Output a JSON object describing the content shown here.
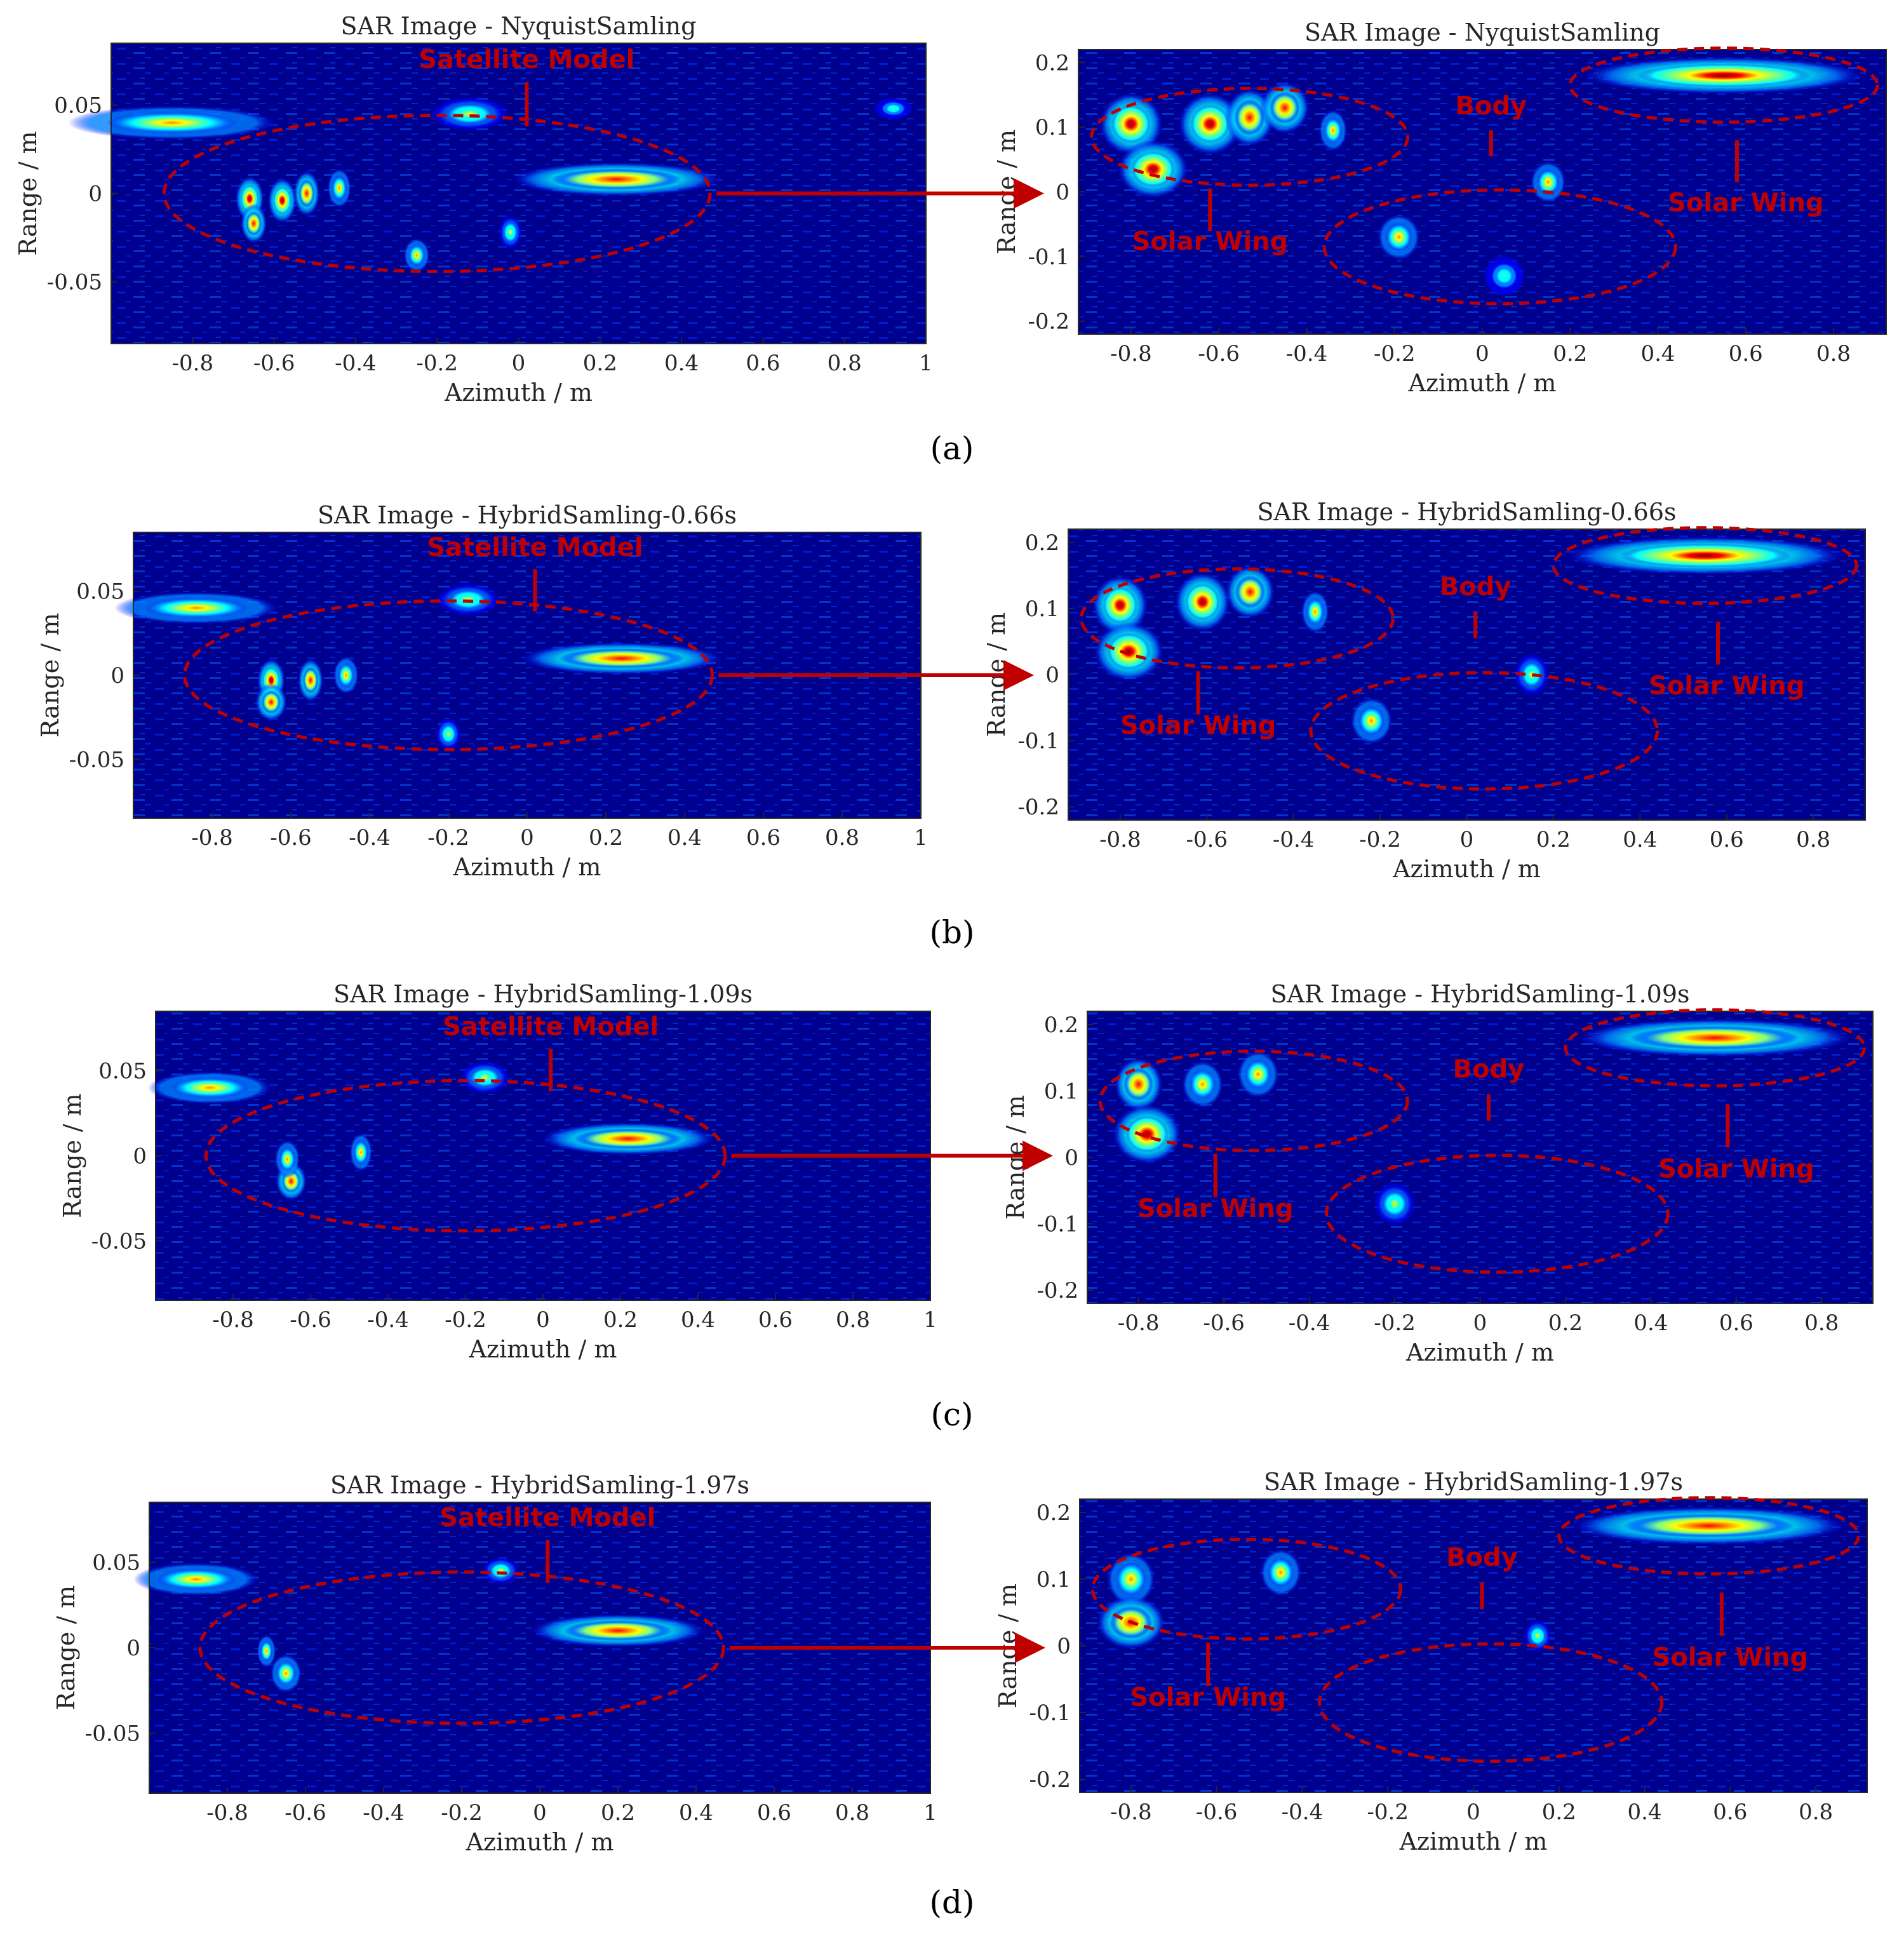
{
  "figure": {
    "panel_labels": [
      "(a)",
      "(b)",
      "(c)",
      "(d)"
    ],
    "colors": {
      "background": "#00008f",
      "annotation": "#c00000",
      "colormap": [
        "#00008f",
        "#0000ff",
        "#0080ff",
        "#00ffff",
        "#80ff80",
        "#ffff00",
        "#ff8000",
        "#ff0000",
        "#800000"
      ]
    },
    "annotations": {
      "satellite_model": "Satellite Model",
      "body": "Body",
      "solar_wing": "Solar Wing"
    }
  },
  "chart_data": [
    {
      "type": "heatmap",
      "row": 0,
      "panel": "full",
      "title": "SAR Image  - NyquistSamling",
      "xlabel": "Azimuth / m",
      "ylabel": "Range / m",
      "xlim": [
        -1.0,
        1.0
      ],
      "ylim": [
        -0.085,
        0.085
      ],
      "xticks": [
        -0.8,
        -0.6,
        -0.4,
        -0.2,
        0,
        0.2,
        0.4,
        0.6,
        0.8,
        1
      ],
      "xtick_labels": [
        "-0.8",
        "-0.6",
        "-0.4",
        "-0.2",
        "0",
        "0.2",
        "0.4",
        "0.6",
        "0.8",
        "1"
      ],
      "yticks": [
        0.05,
        0,
        -0.05
      ],
      "ytick_labels": [
        "0.05",
        "0",
        "-0.05"
      ],
      "hotspots": [
        {
          "x": -0.85,
          "y": 0.04,
          "w": 0.16,
          "h": 0.006,
          "v": 0.75
        },
        {
          "x": -0.66,
          "y": -0.003,
          "w": 0.022,
          "h": 0.008,
          "v": 0.95
        },
        {
          "x": -0.58,
          "y": -0.004,
          "w": 0.022,
          "h": 0.008,
          "v": 0.95
        },
        {
          "x": -0.52,
          "y": 0.0,
          "w": 0.02,
          "h": 0.008,
          "v": 0.85
        },
        {
          "x": -0.65,
          "y": -0.017,
          "w": 0.02,
          "h": 0.007,
          "v": 0.9
        },
        {
          "x": -0.44,
          "y": 0.003,
          "w": 0.018,
          "h": 0.007,
          "v": 0.7
        },
        {
          "x": 0.24,
          "y": 0.008,
          "w": 0.16,
          "h": 0.006,
          "v": 0.9
        },
        {
          "x": -0.12,
          "y": 0.045,
          "w": 0.06,
          "h": 0.006,
          "v": 0.6
        },
        {
          "x": -0.25,
          "y": -0.035,
          "w": 0.02,
          "h": 0.006,
          "v": 0.65
        },
        {
          "x": -0.02,
          "y": -0.022,
          "w": 0.018,
          "h": 0.006,
          "v": 0.6
        },
        {
          "x": 0.92,
          "y": 0.048,
          "w": 0.03,
          "h": 0.004,
          "v": 0.5
        }
      ]
    },
    {
      "type": "heatmap",
      "row": 0,
      "panel": "zoom",
      "title": "SAR Image  - NyquistSamling",
      "xlabel": "Azimuth / m",
      "ylabel": "Range / m",
      "xlim": [
        -0.92,
        0.92
      ],
      "ylim": [
        -0.22,
        0.22
      ],
      "xticks": [
        -0.8,
        -0.6,
        -0.4,
        -0.2,
        0,
        0.2,
        0.4,
        0.6,
        0.8
      ],
      "xtick_labels": [
        "-0.8",
        "-0.6",
        "-0.4",
        "-0.2",
        "0",
        "0.2",
        "0.4",
        "0.6",
        "0.8"
      ],
      "yticks": [
        0.2,
        0.1,
        0,
        -0.1,
        -0.2
      ],
      "ytick_labels": [
        "0.2",
        "0.1",
        "0",
        "-0.1",
        "-0.2"
      ],
      "hotspots": [
        {
          "x": -0.8,
          "y": 0.105,
          "w": 0.045,
          "h": 0.03,
          "v": 0.98
        },
        {
          "x": -0.75,
          "y": 0.035,
          "w": 0.05,
          "h": 0.028,
          "v": 0.95
        },
        {
          "x": -0.62,
          "y": 0.105,
          "w": 0.045,
          "h": 0.03,
          "v": 0.98
        },
        {
          "x": -0.53,
          "y": 0.115,
          "w": 0.035,
          "h": 0.028,
          "v": 0.85
        },
        {
          "x": -0.45,
          "y": 0.13,
          "w": 0.035,
          "h": 0.025,
          "v": 0.9
        },
        {
          "x": -0.34,
          "y": 0.095,
          "w": 0.02,
          "h": 0.02,
          "v": 0.75
        },
        {
          "x": 0.55,
          "y": 0.18,
          "w": 0.2,
          "h": 0.018,
          "v": 0.97
        },
        {
          "x": -0.19,
          "y": -0.07,
          "w": 0.03,
          "h": 0.022,
          "v": 0.7
        },
        {
          "x": 0.15,
          "y": 0.015,
          "w": 0.025,
          "h": 0.02,
          "v": 0.65
        },
        {
          "x": 0.05,
          "y": -0.13,
          "w": 0.03,
          "h": 0.02,
          "v": 0.5
        }
      ]
    },
    {
      "type": "heatmap",
      "row": 1,
      "panel": "full",
      "title": "SAR Image  - HybridSamling-0.66s",
      "xlabel": "Azimuth / m",
      "ylabel": "Range / m",
      "xlim": [
        -1.0,
        1.0
      ],
      "ylim": [
        -0.085,
        0.085
      ],
      "xticks": [
        -0.8,
        -0.6,
        -0.4,
        -0.2,
        0,
        0.2,
        0.4,
        0.6,
        0.8,
        1
      ],
      "xtick_labels": [
        "-0.8",
        "-0.6",
        "-0.4",
        "-0.2",
        "0",
        "0.2",
        "0.4",
        "0.6",
        "0.8",
        "1"
      ],
      "yticks": [
        0.05,
        0,
        -0.05
      ],
      "ytick_labels": [
        "0.05",
        "0",
        "-0.05"
      ],
      "hotspots": [
        {
          "x": -0.84,
          "y": 0.04,
          "w": 0.13,
          "h": 0.006,
          "v": 0.8
        },
        {
          "x": -0.65,
          "y": -0.003,
          "w": 0.022,
          "h": 0.008,
          "v": 0.95
        },
        {
          "x": -0.55,
          "y": -0.003,
          "w": 0.02,
          "h": 0.008,
          "v": 0.9
        },
        {
          "x": -0.46,
          "y": 0.0,
          "w": 0.02,
          "h": 0.007,
          "v": 0.8
        },
        {
          "x": -0.65,
          "y": -0.016,
          "w": 0.025,
          "h": 0.007,
          "v": 0.85
        },
        {
          "x": 0.24,
          "y": 0.01,
          "w": 0.16,
          "h": 0.006,
          "v": 0.9
        },
        {
          "x": -0.15,
          "y": 0.045,
          "w": 0.05,
          "h": 0.006,
          "v": 0.6
        },
        {
          "x": -0.2,
          "y": -0.035,
          "w": 0.02,
          "h": 0.006,
          "v": 0.6
        }
      ]
    },
    {
      "type": "heatmap",
      "row": 1,
      "panel": "zoom",
      "title": "SAR Image  - HybridSamling-0.66s",
      "xlabel": "Azimuth / m",
      "ylabel": "Range / m",
      "xlim": [
        -0.92,
        0.92
      ],
      "ylim": [
        -0.22,
        0.22
      ],
      "xticks": [
        -0.8,
        -0.6,
        -0.4,
        -0.2,
        0,
        0.2,
        0.4,
        0.6,
        0.8
      ],
      "xtick_labels": [
        "-0.8",
        "-0.6",
        "-0.4",
        "-0.2",
        "0",
        "0.2",
        "0.4",
        "0.6",
        "0.8"
      ],
      "yticks": [
        0.2,
        0.1,
        0,
        -0.1,
        -0.2
      ],
      "ytick_labels": [
        "0.2",
        "0.1",
        "0",
        "-0.1",
        "-0.2"
      ],
      "hotspots": [
        {
          "x": -0.8,
          "y": 0.105,
          "w": 0.04,
          "h": 0.028,
          "v": 0.95
        },
        {
          "x": -0.78,
          "y": 0.035,
          "w": 0.05,
          "h": 0.028,
          "v": 0.95
        },
        {
          "x": -0.61,
          "y": 0.11,
          "w": 0.04,
          "h": 0.028,
          "v": 0.95
        },
        {
          "x": -0.5,
          "y": 0.125,
          "w": 0.035,
          "h": 0.025,
          "v": 0.85
        },
        {
          "x": -0.35,
          "y": 0.095,
          "w": 0.02,
          "h": 0.02,
          "v": 0.75
        },
        {
          "x": 0.55,
          "y": 0.18,
          "w": 0.2,
          "h": 0.018,
          "v": 0.95
        },
        {
          "x": -0.22,
          "y": -0.07,
          "w": 0.03,
          "h": 0.022,
          "v": 0.65
        },
        {
          "x": 0.15,
          "y": 0.0,
          "w": 0.025,
          "h": 0.02,
          "v": 0.55
        }
      ]
    },
    {
      "type": "heatmap",
      "row": 2,
      "panel": "full",
      "title": "SAR Image  - HybridSamling-1.09s",
      "xlabel": "Azimuth / m",
      "ylabel": "Range / m",
      "xlim": [
        -1.0,
        1.0
      ],
      "ylim": [
        -0.085,
        0.085
      ],
      "xticks": [
        -0.8,
        -0.6,
        -0.4,
        -0.2,
        0,
        0.2,
        0.4,
        0.6,
        0.8,
        1
      ],
      "xtick_labels": [
        "-0.8",
        "-0.6",
        "-0.4",
        "-0.2",
        "0",
        "0.2",
        "0.4",
        "0.6",
        "0.8",
        "1"
      ],
      "yticks": [
        0.05,
        0,
        -0.05
      ],
      "ytick_labels": [
        "0.05",
        "0",
        "-0.05"
      ],
      "hotspots": [
        {
          "x": -0.86,
          "y": 0.04,
          "w": 0.1,
          "h": 0.006,
          "v": 0.8
        },
        {
          "x": -0.65,
          "y": -0.015,
          "w": 0.025,
          "h": 0.007,
          "v": 0.85
        },
        {
          "x": -0.66,
          "y": -0.002,
          "w": 0.02,
          "h": 0.007,
          "v": 0.7
        },
        {
          "x": -0.47,
          "y": 0.002,
          "w": 0.018,
          "h": 0.007,
          "v": 0.75
        },
        {
          "x": 0.22,
          "y": 0.01,
          "w": 0.14,
          "h": 0.006,
          "v": 0.9
        },
        {
          "x": -0.15,
          "y": 0.046,
          "w": 0.04,
          "h": 0.006,
          "v": 0.6
        }
      ]
    },
    {
      "type": "heatmap",
      "row": 2,
      "panel": "zoom",
      "title": "SAR Image  - HybridSamling-1.09s",
      "xlabel": "Azimuth / m",
      "ylabel": "Range / m",
      "xlim": [
        -0.92,
        0.92
      ],
      "ylim": [
        -0.22,
        0.22
      ],
      "xticks": [
        -0.8,
        -0.6,
        -0.4,
        -0.2,
        0,
        0.2,
        0.4,
        0.6,
        0.8
      ],
      "xtick_labels": [
        "-0.8",
        "-0.6",
        "-0.4",
        "-0.2",
        "0",
        "0.2",
        "0.4",
        "0.6",
        "0.8"
      ],
      "yticks": [
        0.2,
        0.1,
        0,
        -0.1,
        -0.2
      ],
      "ytick_labels": [
        "0.2",
        "0.1",
        "0",
        "-0.1",
        "-0.2"
      ],
      "hotspots": [
        {
          "x": -0.8,
          "y": 0.11,
          "w": 0.035,
          "h": 0.025,
          "v": 0.85
        },
        {
          "x": -0.78,
          "y": 0.035,
          "w": 0.05,
          "h": 0.028,
          "v": 0.95
        },
        {
          "x": -0.65,
          "y": 0.11,
          "w": 0.03,
          "h": 0.022,
          "v": 0.75
        },
        {
          "x": -0.52,
          "y": 0.125,
          "w": 0.03,
          "h": 0.022,
          "v": 0.8
        },
        {
          "x": 0.55,
          "y": 0.18,
          "w": 0.2,
          "h": 0.018,
          "v": 0.92
        },
        {
          "x": -0.2,
          "y": -0.07,
          "w": 0.03,
          "h": 0.02,
          "v": 0.55
        }
      ]
    },
    {
      "type": "heatmap",
      "row": 3,
      "panel": "full",
      "title": "SAR Image  - HybridSamling-1.97s",
      "xlabel": "Azimuth / m",
      "ylabel": "Range / m",
      "xlim": [
        -1.0,
        1.0
      ],
      "ylim": [
        -0.085,
        0.085
      ],
      "xticks": [
        -0.8,
        -0.6,
        -0.4,
        -0.2,
        0,
        0.2,
        0.4,
        0.6,
        0.8,
        1
      ],
      "xtick_labels": [
        "-0.8",
        "-0.6",
        "-0.4",
        "-0.2",
        "0",
        "0.2",
        "0.4",
        "0.6",
        "0.8",
        "1"
      ],
      "yticks": [
        0.05,
        0,
        -0.05
      ],
      "ytick_labels": [
        "0.05",
        "0",
        "-0.05"
      ],
      "hotspots": [
        {
          "x": -0.88,
          "y": 0.04,
          "w": 0.1,
          "h": 0.006,
          "v": 0.75
        },
        {
          "x": -0.65,
          "y": -0.015,
          "w": 0.025,
          "h": 0.007,
          "v": 0.75
        },
        {
          "x": -0.7,
          "y": -0.002,
          "w": 0.015,
          "h": 0.006,
          "v": 0.65
        },
        {
          "x": 0.2,
          "y": 0.01,
          "w": 0.14,
          "h": 0.006,
          "v": 0.85
        },
        {
          "x": -0.1,
          "y": 0.045,
          "w": 0.03,
          "h": 0.005,
          "v": 0.55
        }
      ]
    },
    {
      "type": "heatmap",
      "row": 3,
      "panel": "zoom",
      "title": "SAR Image  - HybridSamling-1.97s",
      "xlabel": "Azimuth / m",
      "ylabel": "Range / m",
      "xlim": [
        -0.92,
        0.92
      ],
      "ylim": [
        -0.22,
        0.22
      ],
      "xticks": [
        -0.8,
        -0.6,
        -0.4,
        -0.2,
        0,
        0.2,
        0.4,
        0.6,
        0.8
      ],
      "xtick_labels": [
        "-0.8",
        "-0.6",
        "-0.4",
        "-0.2",
        "0",
        "0.2",
        "0.4",
        "0.6",
        "0.8"
      ],
      "yticks": [
        0.2,
        0.1,
        0,
        -0.1,
        -0.2
      ],
      "ytick_labels": [
        "0.2",
        "0.1",
        "0",
        "-0.1",
        "-0.2"
      ],
      "hotspots": [
        {
          "x": -0.8,
          "y": 0.1,
          "w": 0.035,
          "h": 0.025,
          "v": 0.75
        },
        {
          "x": -0.8,
          "y": 0.035,
          "w": 0.05,
          "h": 0.025,
          "v": 0.85
        },
        {
          "x": -0.45,
          "y": 0.11,
          "w": 0.03,
          "h": 0.022,
          "v": 0.7
        },
        {
          "x": 0.55,
          "y": 0.18,
          "w": 0.2,
          "h": 0.018,
          "v": 0.9
        },
        {
          "x": 0.15,
          "y": 0.015,
          "w": 0.02,
          "h": 0.015,
          "v": 0.55
        }
      ]
    }
  ]
}
